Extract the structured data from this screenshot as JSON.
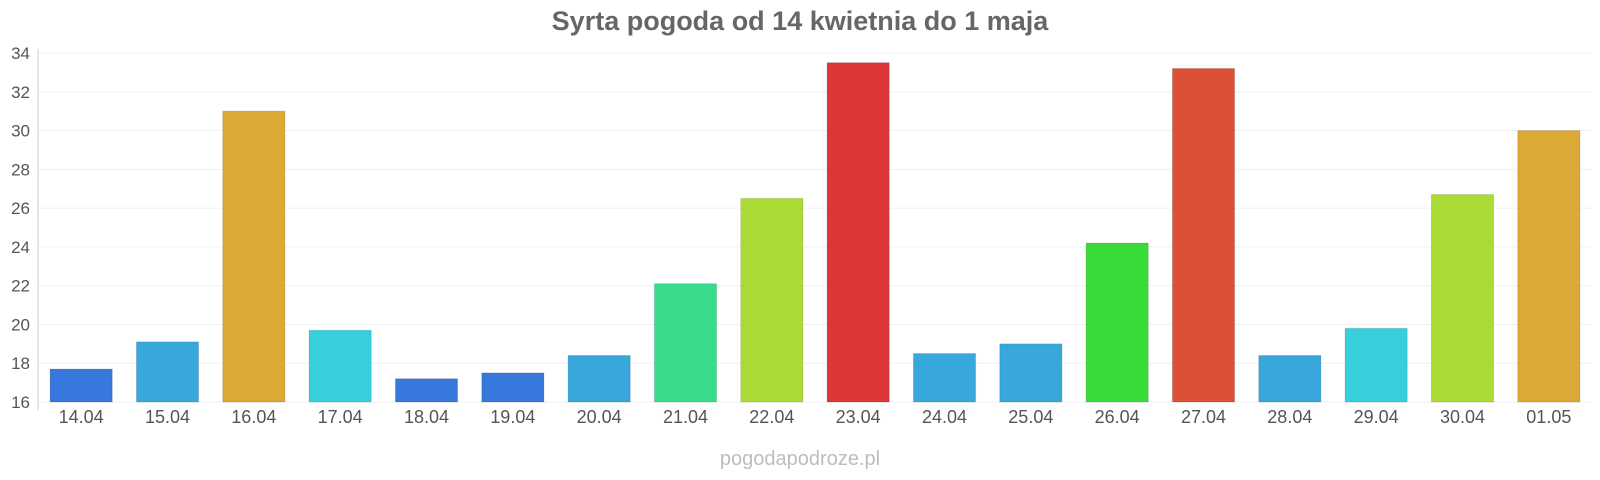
{
  "chart_data": {
    "type": "bar",
    "title": "Syrta pogoda od 14 kwietnia do 1 maja",
    "xlabel": "",
    "ylabel": "",
    "ylim": [
      16,
      34
    ],
    "yticks": [
      "16",
      "18",
      "20",
      "22",
      "24",
      "26",
      "28",
      "30",
      "32",
      "34"
    ],
    "grid": true,
    "categories": [
      "14.04",
      "15.04",
      "16.04",
      "17.04",
      "18.04",
      "19.04",
      "20.04",
      "21.04",
      "22.04",
      "23.04",
      "24.04",
      "25.04",
      "26.04",
      "27.04",
      "28.04",
      "29.04",
      "30.04",
      "01.05"
    ],
    "values": [
      17.7,
      19.1,
      31.0,
      19.7,
      17.2,
      17.5,
      18.4,
      22.1,
      26.5,
      33.5,
      18.5,
      19.0,
      24.2,
      33.2,
      18.4,
      19.8,
      26.7,
      30.0
    ],
    "bar_colors": [
      "#3778dc",
      "#38a8dc",
      "#dca836",
      "#38cfdc",
      "#3778dc",
      "#3778dc",
      "#38a8dc",
      "#38dc8c",
      "#abdc36",
      "#dc3636",
      "#38a8dc",
      "#38a8dc",
      "#38dc38",
      "#dc5036",
      "#38a8dc",
      "#38cfdc",
      "#abdc36",
      "#dca836"
    ]
  },
  "footer": {
    "source": "pogodapodroze.pl"
  }
}
